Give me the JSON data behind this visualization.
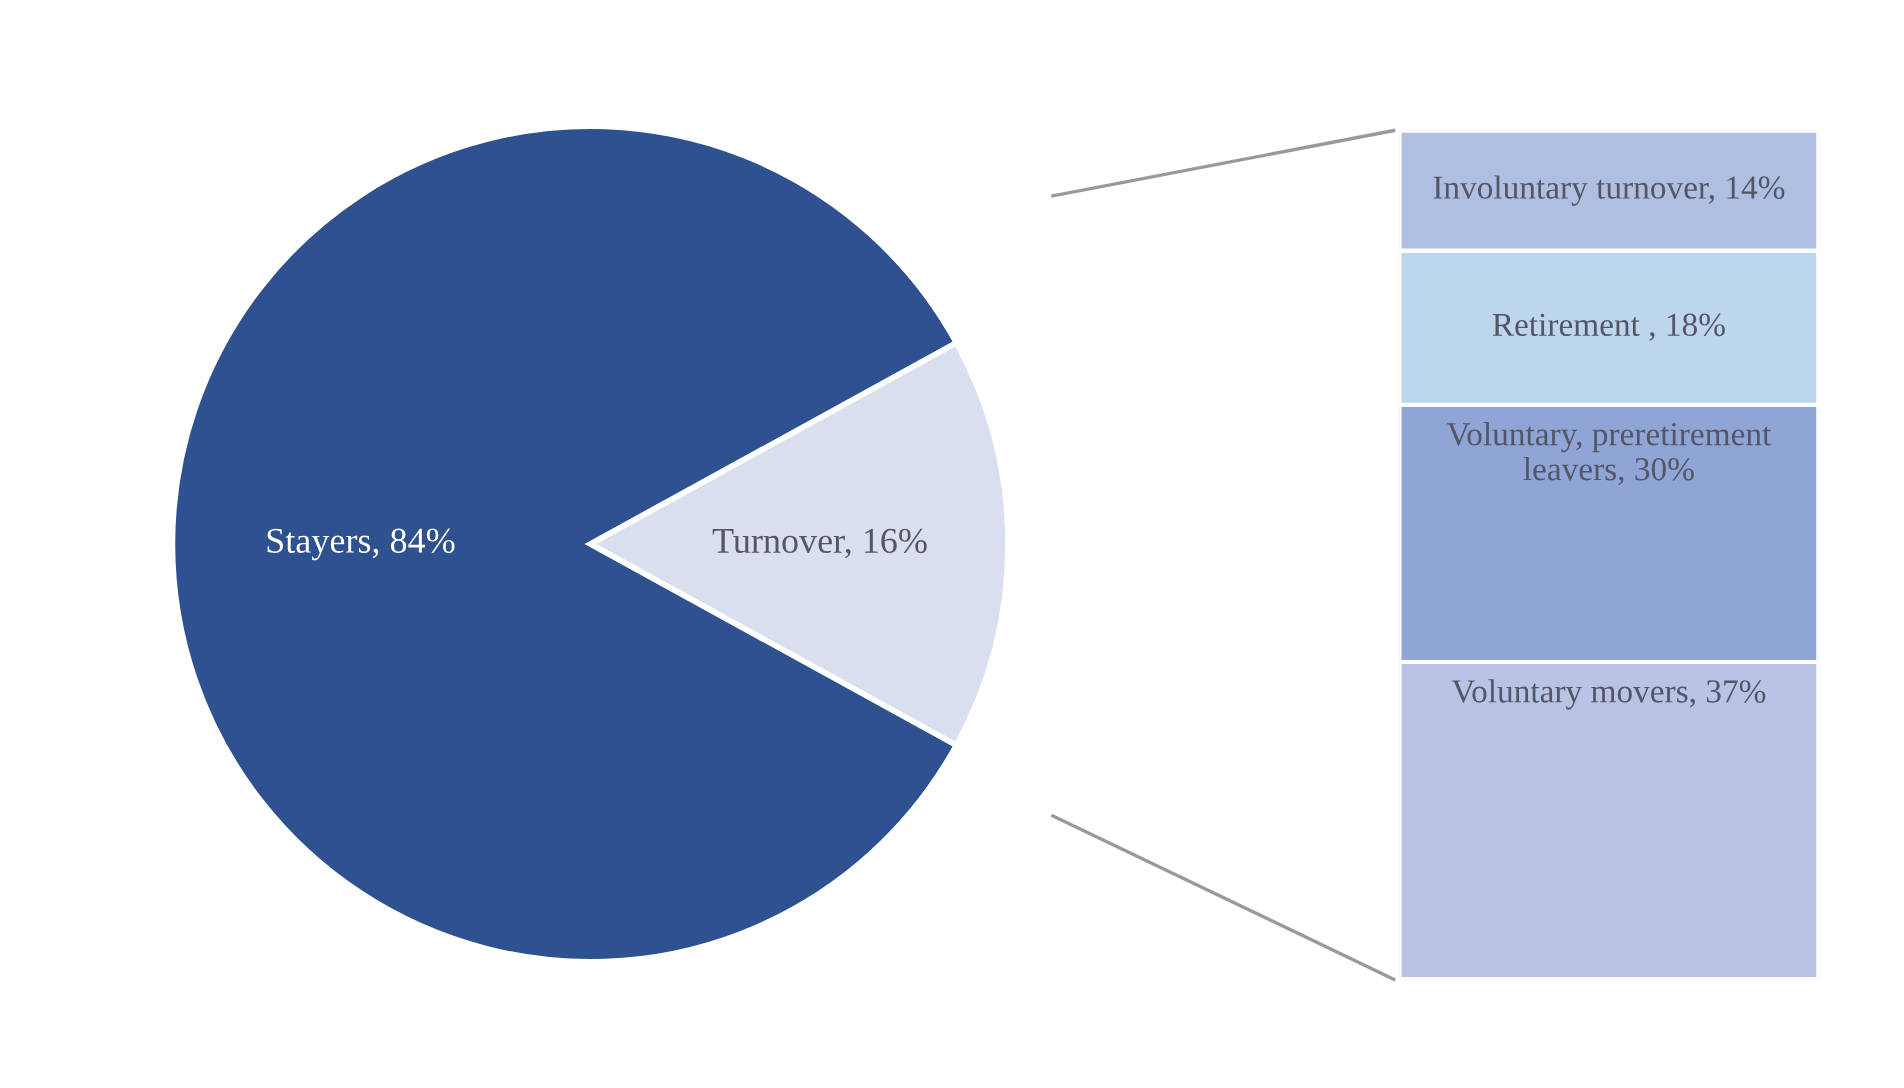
{
  "chart_data": [
    {
      "type": "pie",
      "categories": [
        null,
        null
      ],
      "values": [
        84,
        16
      ],
      "colors": [
        "#2e5190",
        "#dadff0"
      ],
      "value_labels": [
        "Stayers, 84%",
        "Turnover, 16%"
      ]
    },
    {
      "type": "bar",
      "stacked": true,
      "categories": [
        null
      ],
      "series": [
        {
          "color": "#b8c3e5",
          "values": [
            37
          ],
          "value_labels": [
            "Voluntary movers, 37%"
          ]
        },
        {
          "color": "#8ea5d6",
          "values": [
            30
          ],
          "value_labels": [
            "Voluntary, preretirement leavers, 30%"
          ]
        },
        {
          "color": "#bcd6ee",
          "values": [
            18
          ],
          "value_labels": [
            "Retirement , 18%"
          ]
        },
        {
          "color": "#aebfe2",
          "values": [
            14
          ],
          "value_labels": [
            "Involuntary turnover, 14%"
          ]
        }
      ]
    }
  ]
}
